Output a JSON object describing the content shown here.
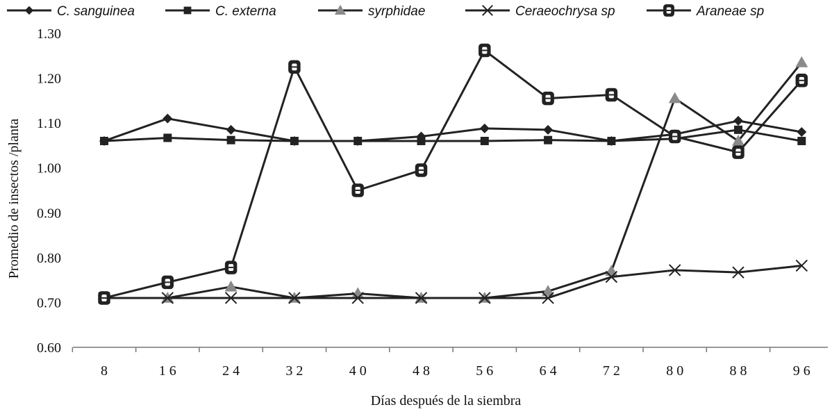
{
  "chart_data": {
    "type": "line",
    "xlabel": "Días después de la siembra",
    "ylabel": "Promedio de insectos /planta",
    "categories": [
      "8",
      "16",
      "24",
      "32",
      "40",
      "48",
      "56",
      "64",
      "72",
      "80",
      "88",
      "96"
    ],
    "ylim": [
      0.6,
      1.3
    ],
    "yticks": [
      "0.60",
      "0.70",
      "0.80",
      "0.90",
      "1.00",
      "1.10",
      "1.20",
      "1.30"
    ],
    "grid": false,
    "legend_position": "top",
    "series": [
      {
        "name": "C. sanguinea",
        "marker": "diamond",
        "color": "#222222",
        "values": [
          1.06,
          1.11,
          1.085,
          1.06,
          1.06,
          1.07,
          1.088,
          1.085,
          1.06,
          1.075,
          1.105,
          1.08
        ]
      },
      {
        "name": "C. externa",
        "marker": "square",
        "color": "#222222",
        "values": [
          1.06,
          1.067,
          1.062,
          1.06,
          1.06,
          1.06,
          1.06,
          1.062,
          1.06,
          1.065,
          1.085,
          1.06
        ]
      },
      {
        "name": "syrphidae",
        "marker": "triangle",
        "color": "#8a8a8a",
        "values": [
          0.71,
          0.71,
          0.735,
          0.71,
          0.72,
          0.71,
          0.71,
          0.725,
          0.77,
          1.155,
          1.06,
          1.235
        ]
      },
      {
        "name": "Ceraeochrysa sp",
        "marker": "cross",
        "color": "#222222",
        "values": [
          0.71,
          0.71,
          0.71,
          0.71,
          0.71,
          0.71,
          0.71,
          0.71,
          0.757,
          0.772,
          0.767,
          0.782
        ]
      },
      {
        "name": "Araneae sp",
        "marker": "ring",
        "color": "#222222",
        "values": [
          0.71,
          0.745,
          0.778,
          1.225,
          0.95,
          0.995,
          1.262,
          1.155,
          1.163,
          1.07,
          1.035,
          1.195
        ]
      }
    ]
  }
}
